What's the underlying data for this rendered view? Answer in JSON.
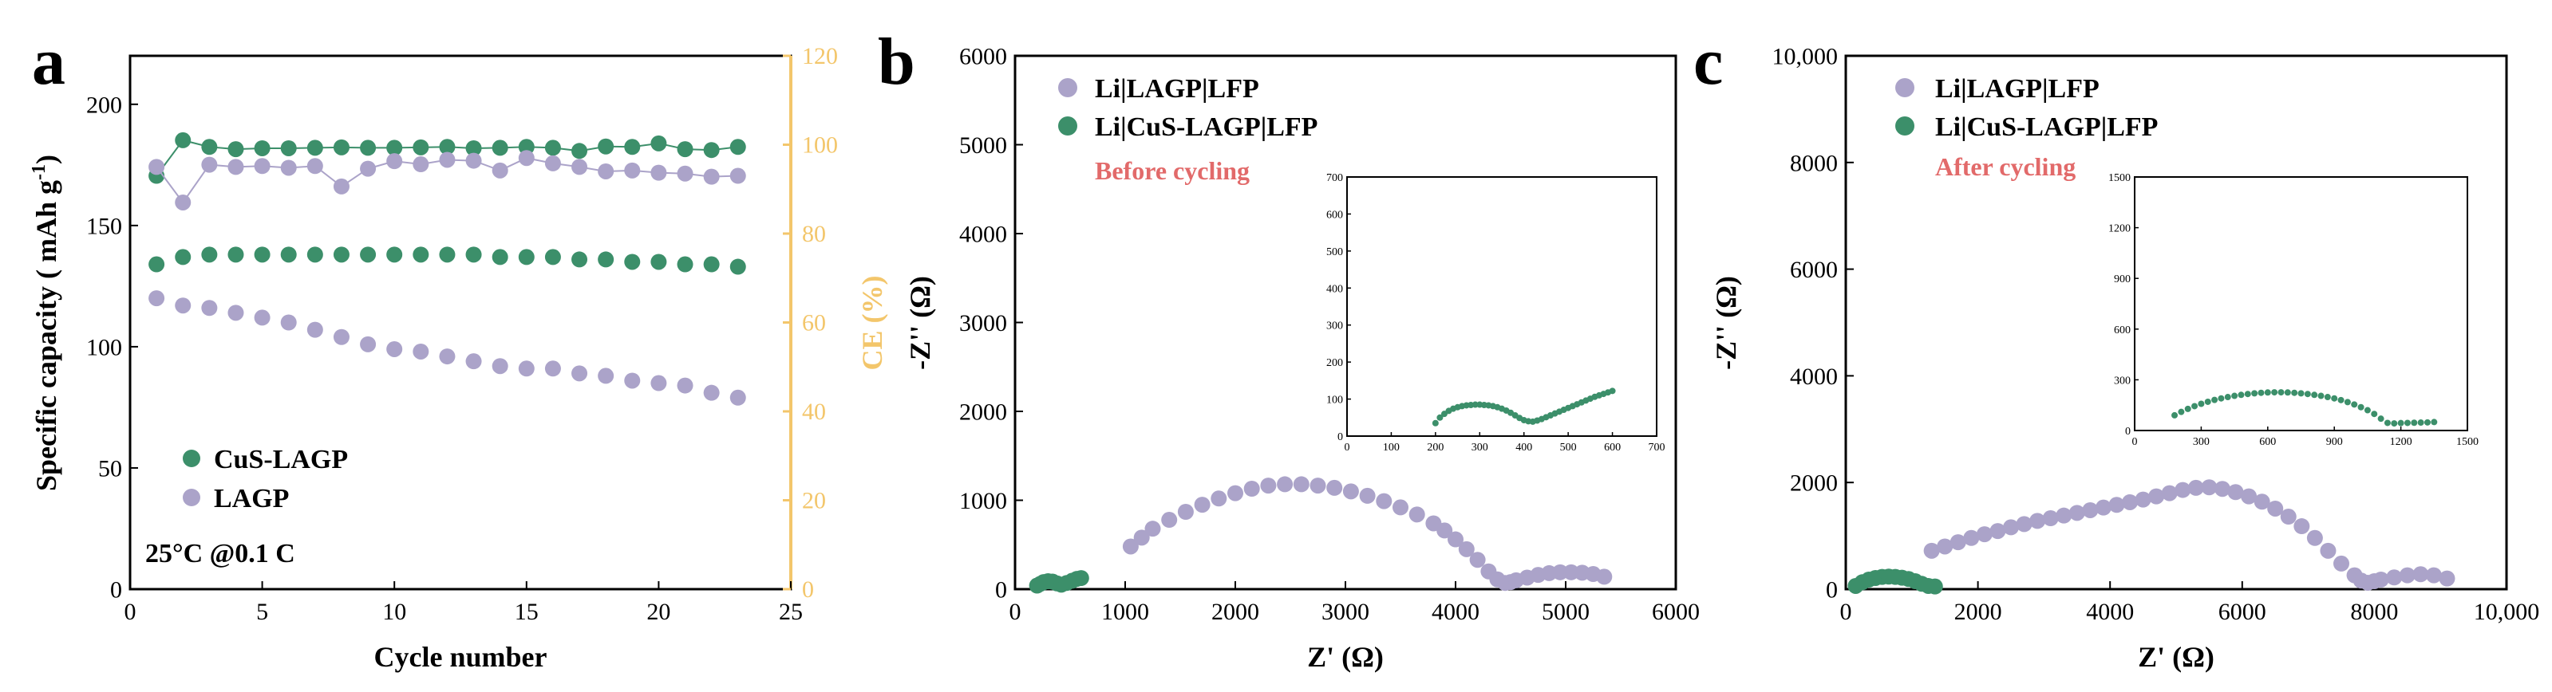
{
  "colors": {
    "lagp": "#ABA3C9",
    "cus_lagp": "#3C8F6A",
    "ce_axis": "#F3C66B",
    "annotation": "#E26A6A",
    "axis": "#000000"
  },
  "chart_data": [
    {
      "type": "scatter",
      "panel": "a",
      "xlabel": "Cycle number",
      "ylabel": "Specific capacity ( mAh g-1)",
      "ylabel_main": "Specific capacity ( mAh g",
      "ylabel_sup": "-1",
      "ylabel_end": ")",
      "y2label": "CE (%)",
      "xlim": [
        0,
        25
      ],
      "ylim": [
        0,
        220
      ],
      "y2lim": [
        0,
        120
      ],
      "xticks": [
        "0",
        "5",
        "10",
        "15",
        "20",
        "25"
      ],
      "yticks": [
        "0",
        "50",
        "100",
        "150",
        "200"
      ],
      "y2ticks": [
        "0",
        "20",
        "40",
        "60",
        "80",
        "100",
        "120"
      ],
      "annotation": "25°C @0.1 C",
      "legend": [
        "CuS-LAGP",
        "LAGP"
      ],
      "x": [
        1,
        2,
        3,
        4,
        5,
        6,
        7,
        8,
        9,
        10,
        11,
        12,
        13,
        14,
        15,
        16,
        17,
        18,
        19,
        20,
        21,
        22,
        23
      ],
      "series": [
        {
          "name": "CuS-LAGP",
          "axis": "capacity",
          "values": [
            134,
            137,
            138,
            138,
            138,
            138,
            138,
            138,
            138,
            138,
            138,
            138,
            138,
            137,
            137,
            137,
            136,
            136,
            135,
            135,
            134,
            134,
            133
          ]
        },
        {
          "name": "LAGP",
          "axis": "capacity",
          "values": [
            120,
            117,
            116,
            114,
            112,
            110,
            107,
            104,
            101,
            99,
            98,
            96,
            94,
            92,
            91,
            91,
            89,
            88,
            86,
            85,
            84,
            81,
            79
          ]
        },
        {
          "name": "CuS-LAGP CE",
          "axis": "ce",
          "values": [
            93,
            101,
            99.5,
            99,
            99.2,
            99.2,
            99.3,
            99.4,
            99.3,
            99.3,
            99.4,
            99.5,
            99.2,
            99.3,
            99.5,
            99.3,
            98.6,
            99.6,
            99.5,
            100.3,
            99,
            98.8,
            99.5
          ]
        },
        {
          "name": "LAGP CE",
          "axis": "ce",
          "values": [
            95,
            87,
            95.5,
            95,
            95.2,
            94.8,
            95.2,
            90.6,
            94.6,
            96.3,
            95.6,
            96.6,
            96.4,
            94.2,
            97,
            95.8,
            95,
            94,
            94.2,
            93.7,
            93.5,
            92.8,
            93
          ]
        }
      ]
    },
    {
      "type": "scatter",
      "panel": "b",
      "xlabel": "Z' (Ω)",
      "ylabel": "-Z'' (Ω)",
      "xlim": [
        0,
        6000
      ],
      "ylim": [
        0,
        6000
      ],
      "xticks": [
        "0",
        "1000",
        "2000",
        "3000",
        "4000",
        "5000",
        "6000"
      ],
      "yticks": [
        "0",
        "1000",
        "2000",
        "3000",
        "4000",
        "5000",
        "6000"
      ],
      "legend": [
        "Li|LAGP|LFP",
        "Li|CuS-LAGP|LFP"
      ],
      "annotation": "Before cycling",
      "series": [
        {
          "name": "Li|LAGP|LFP",
          "x": [
            1050,
            1150,
            1250,
            1400,
            1550,
            1700,
            1850,
            2000,
            2150,
            2300,
            2450,
            2600,
            2750,
            2900,
            3050,
            3200,
            3350,
            3500,
            3650,
            3800,
            3900,
            4000,
            4100,
            4200,
            4300,
            4380,
            4450,
            4500,
            4550,
            4650,
            4750,
            4850,
            4950,
            5050,
            5150,
            5250,
            5350
          ],
          "y": [
            480,
            580,
            680,
            780,
            870,
            950,
            1020,
            1080,
            1130,
            1165,
            1180,
            1180,
            1165,
            1140,
            1100,
            1050,
            990,
            920,
            840,
            740,
            660,
            560,
            450,
            330,
            200,
            110,
            70,
            80,
            100,
            130,
            160,
            180,
            190,
            190,
            185,
            170,
            140
          ]
        },
        {
          "name": "Li|CuS-LAGP|LFP",
          "x": [
            200,
            230,
            260,
            300,
            340,
            380,
            420,
            470,
            520,
            560,
            600
          ],
          "y": [
            40,
            60,
            80,
            90,
            85,
            65,
            50,
            70,
            95,
            115,
            125
          ]
        }
      ],
      "inset": {
        "xlim": [
          0,
          700
        ],
        "ylim": [
          0,
          700
        ],
        "xticks": [
          "0",
          "100",
          "200",
          "300",
          "400",
          "500",
          "600",
          "700"
        ],
        "yticks": [
          "0",
          "100",
          "200",
          "300",
          "400",
          "500",
          "600",
          "700"
        ],
        "x": [
          200,
          210,
          220,
          230,
          240,
          250,
          260,
          270,
          280,
          290,
          300,
          310,
          320,
          330,
          340,
          350,
          360,
          370,
          380,
          390,
          400,
          410,
          420,
          430,
          440,
          450,
          460,
          470,
          480,
          490,
          500,
          510,
          520,
          530,
          540,
          550,
          560,
          570,
          580,
          590,
          600
        ],
        "y": [
          35,
          50,
          60,
          68,
          74,
          78,
          81,
          83,
          84,
          85,
          85,
          84,
          83,
          81,
          78,
          74,
          69,
          63,
          56,
          49,
          43,
          40,
          39,
          42,
          46,
          51,
          56,
          61,
          66,
          71,
          76,
          81,
          86,
          91,
          96,
          101,
          106,
          110,
          114,
          118,
          122
        ]
      }
    },
    {
      "type": "scatter",
      "panel": "c",
      "xlabel": "Z' (Ω)",
      "ylabel": "-Z'' (Ω)",
      "xlim": [
        0,
        10000
      ],
      "ylim": [
        0,
        10000
      ],
      "xticks": [
        "0",
        "2000",
        "4000",
        "6000",
        "8000",
        "10,000"
      ],
      "yticks": [
        "0",
        "2000",
        "4000",
        "6000",
        "8000",
        "10,000"
      ],
      "legend": [
        "Li|LAGP|LFP",
        "Li|CuS-LAGP|LFP"
      ],
      "annotation": "After cycling",
      "series": [
        {
          "name": "Li|LAGP|LFP",
          "x": [
            1300,
            1500,
            1700,
            1900,
            2100,
            2300,
            2500,
            2700,
            2900,
            3100,
            3300,
            3500,
            3700,
            3900,
            4100,
            4300,
            4500,
            4700,
            4900,
            5100,
            5300,
            5500,
            5700,
            5900,
            6100,
            6300,
            6500,
            6700,
            6900,
            7100,
            7300,
            7500,
            7700,
            7800,
            7900,
            8000,
            8100,
            8300,
            8500,
            8700,
            8900,
            9100
          ],
          "y": [
            720,
            800,
            880,
            960,
            1030,
            1090,
            1160,
            1220,
            1280,
            1330,
            1380,
            1430,
            1480,
            1530,
            1580,
            1630,
            1680,
            1740,
            1800,
            1860,
            1900,
            1910,
            1880,
            1820,
            1740,
            1640,
            1510,
            1360,
            1180,
            960,
            720,
            480,
            260,
            160,
            120,
            150,
            180,
            220,
            260,
            280,
            260,
            200
          ]
        },
        {
          "name": "Li|CuS-LAGP|LFP",
          "x": [
            150,
            250,
            350,
            450,
            550,
            650,
            750,
            850,
            950,
            1050,
            1150,
            1250,
            1350
          ],
          "y": [
            60,
            130,
            180,
            210,
            230,
            235,
            230,
            215,
            190,
            150,
            100,
            60,
            50
          ]
        }
      ],
      "inset": {
        "xlim": [
          0,
          1500
        ],
        "ylim": [
          0,
          1500
        ],
        "xticks": [
          "0",
          "300",
          "600",
          "900",
          "1200",
          "1500"
        ],
        "yticks": [
          "0",
          "300",
          "600",
          "900",
          "1200",
          "1500"
        ],
        "x": [
          180,
          210,
          240,
          270,
          300,
          330,
          360,
          390,
          420,
          450,
          480,
          510,
          540,
          570,
          600,
          630,
          660,
          690,
          720,
          750,
          780,
          810,
          840,
          870,
          900,
          930,
          960,
          990,
          1020,
          1050,
          1080,
          1110,
          1140,
          1170,
          1200,
          1230,
          1260,
          1290,
          1320,
          1350
        ],
        "y": [
          90,
          110,
          128,
          144,
          158,
          170,
          181,
          190,
          198,
          205,
          211,
          216,
          220,
          223,
          225,
          226,
          226,
          225,
          223,
          220,
          216,
          211,
          205,
          198,
          190,
          180,
          168,
          154,
          138,
          120,
          98,
          70,
          45,
          42,
          44,
          45,
          46,
          47,
          48,
          50
        ]
      }
    }
  ]
}
